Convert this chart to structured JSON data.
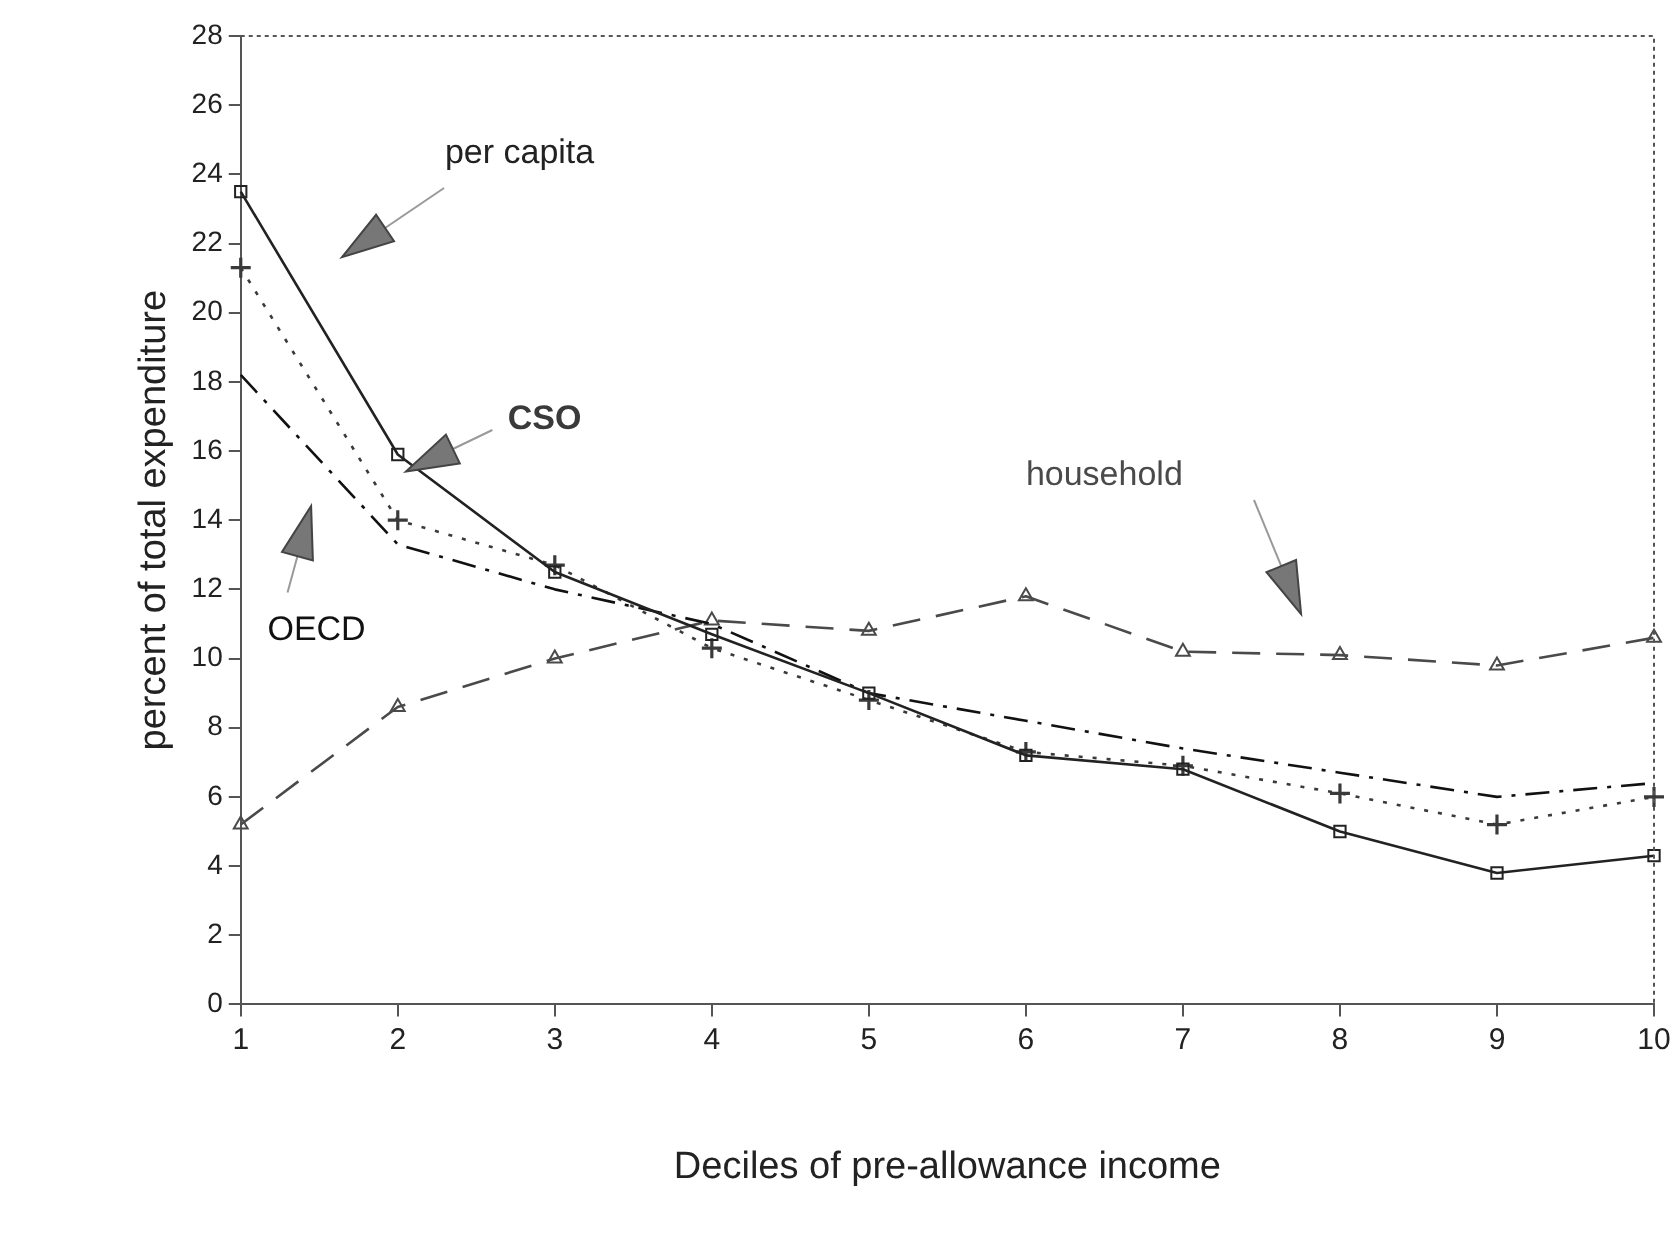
{
  "chart_data": {
    "type": "line",
    "xlabel": "Deciles of pre-allowance income",
    "ylabel": "percent of total expenditure",
    "x": [
      1,
      2,
      3,
      4,
      5,
      6,
      7,
      8,
      9,
      10
    ],
    "xlim": [
      1,
      10
    ],
    "xticks": [
      1,
      2,
      3,
      4,
      5,
      6,
      7,
      8,
      9,
      10
    ],
    "ylim": [
      0,
      28
    ],
    "yticks": [
      0,
      2,
      4,
      6,
      8,
      10,
      12,
      14,
      16,
      18,
      20,
      22,
      24,
      26,
      28
    ],
    "grid": false,
    "legend": false,
    "series": [
      {
        "name": "per capita",
        "color": "#222222",
        "marker": "square",
        "line_style": "solid",
        "values": [
          23.5,
          15.9,
          12.5,
          10.7,
          9.0,
          7.2,
          6.8,
          5.0,
          3.8,
          4.3
        ]
      },
      {
        "name": "CSO",
        "color": "#3a3a3a",
        "marker": "cross",
        "line_style": "dotted",
        "values": [
          21.3,
          14.0,
          12.7,
          10.3,
          8.8,
          7.3,
          6.9,
          6.1,
          5.2,
          6.0
        ]
      },
      {
        "name": "OECD",
        "color": "#111111",
        "marker": "none",
        "line_style": "dashdot",
        "values": [
          18.2,
          13.3,
          12.0,
          11.0,
          9.0,
          8.2,
          7.4,
          6.7,
          6.0,
          6.4
        ]
      },
      {
        "name": "household",
        "color": "#4a4a4a",
        "marker": "triangle",
        "line_style": "dashed",
        "values": [
          5.2,
          8.6,
          10.0,
          11.1,
          10.8,
          11.8,
          10.2,
          10.1,
          9.8,
          10.6
        ]
      }
    ]
  }
}
